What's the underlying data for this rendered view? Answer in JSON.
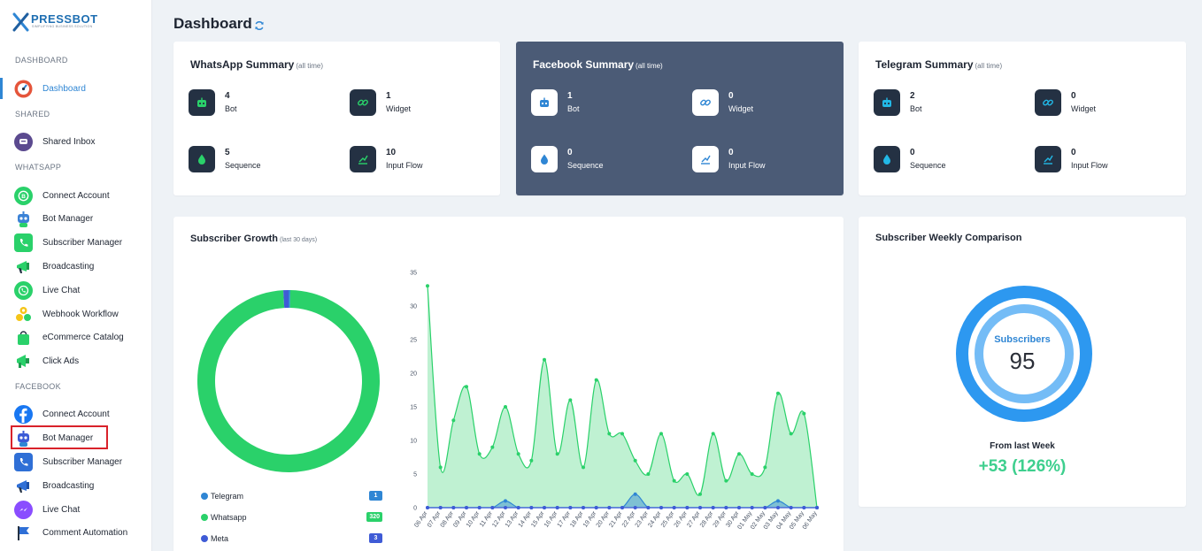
{
  "brand": {
    "name": "PRESSBOT",
    "tagline": "SIMPLIFYING BUSINESS SOLUTION"
  },
  "sidebar": {
    "sections": [
      {
        "label": "DASHBOARD",
        "items": [
          {
            "label": "Dashboard",
            "icon": "dashboard-gauge-icon",
            "active": true
          }
        ]
      },
      {
        "label": "SHARED",
        "items": [
          {
            "label": "Shared Inbox",
            "icon": "shared-inbox-icon"
          }
        ]
      },
      {
        "label": "WHATSAPP",
        "items": [
          {
            "label": "Connect Account",
            "icon": "whatsapp-business-icon"
          },
          {
            "label": "Bot Manager",
            "icon": "robot-icon"
          },
          {
            "label": "Subscriber Manager",
            "icon": "whatsapp-contacts-icon"
          },
          {
            "label": "Broadcasting",
            "icon": "megaphone-icon"
          },
          {
            "label": "Live Chat",
            "icon": "whatsapp-icon"
          },
          {
            "label": "Webhook Workflow",
            "icon": "webhook-icon"
          },
          {
            "label": "eCommerce Catalog",
            "icon": "shopping-bag-icon"
          },
          {
            "label": "Click Ads",
            "icon": "ads-megaphone-icon"
          }
        ]
      },
      {
        "label": "FACEBOOK",
        "items": [
          {
            "label": "Connect Account",
            "icon": "facebook-icon"
          },
          {
            "label": "Bot Manager",
            "icon": "robot-icon"
          },
          {
            "label": "Subscriber Manager",
            "icon": "contacts-phone-icon"
          },
          {
            "label": "Broadcasting",
            "icon": "megaphone-icon"
          },
          {
            "label": "Live Chat",
            "icon": "messenger-icon"
          },
          {
            "label": "Comment Automation",
            "icon": "flag-icon"
          }
        ]
      }
    ]
  },
  "header": {
    "title": "Dashboard",
    "refresh_icon": "refresh-icon"
  },
  "summaries": [
    {
      "title": "WhatsApp Summary",
      "subtitle": "(all time)",
      "stats": [
        {
          "label": "Bot",
          "value": "4",
          "icon": "robot-icon"
        },
        {
          "label": "Widget",
          "value": "1",
          "icon": "link-icon"
        },
        {
          "label": "Sequence",
          "value": "5",
          "icon": "droplet-icon"
        },
        {
          "label": "Input Flow",
          "value": "10",
          "icon": "input-flow-icon"
        }
      ]
    },
    {
      "title": "Facebook Summary",
      "subtitle": "(all time)",
      "stats": [
        {
          "label": "Bot",
          "value": "1",
          "icon": "robot-icon"
        },
        {
          "label": "Widget",
          "value": "0",
          "icon": "link-icon"
        },
        {
          "label": "Sequence",
          "value": "0",
          "icon": "droplet-icon"
        },
        {
          "label": "Input Flow",
          "value": "0",
          "icon": "input-flow-icon"
        }
      ]
    },
    {
      "title": "Telegram Summary",
      "subtitle": "(all time)",
      "stats": [
        {
          "label": "Bot",
          "value": "2",
          "icon": "robot-icon"
        },
        {
          "label": "Widget",
          "value": "0",
          "icon": "link-icon"
        },
        {
          "label": "Sequence",
          "value": "0",
          "icon": "droplet-icon"
        },
        {
          "label": "Input Flow",
          "value": "0",
          "icon": "input-flow-icon"
        }
      ]
    }
  ],
  "colors": {
    "whatsapp": "#2ad16a",
    "telegram": "#2f86d4",
    "meta": "#3f5bd6",
    "accent": "#2f86d4",
    "dark_card": "#4b5b76",
    "delta": "#3ecf8e"
  },
  "growth": {
    "title": "Subscriber Growth",
    "subtitle": "(last 30 days)"
  },
  "chart_data": [
    {
      "type": "pie",
      "variant": "doughnut",
      "labels": [
        "Telegram",
        "Whatsapp",
        "Meta"
      ],
      "values": [
        1,
        320,
        3
      ],
      "badges": [
        "1",
        "320",
        "3"
      ],
      "colors": [
        "#2f86d4",
        "#2ad16a",
        "#3f5bd6"
      ],
      "legend": "bottom"
    },
    {
      "type": "area",
      "categories": [
        "06 Apr",
        "07 Apr",
        "08 Apr",
        "09 Apr",
        "10 Apr",
        "11 Apr",
        "12 Apr",
        "13 Apr",
        "14 Apr",
        "15 Apr",
        "16 Apr",
        "17 Apr",
        "18 Apr",
        "19 Apr",
        "20 Apr",
        "21 Apr",
        "22 Apr",
        "23 Apr",
        "24 Apr",
        "25 Apr",
        "26 Apr",
        "27 Apr",
        "28 Apr",
        "29 Apr",
        "30 Apr",
        "01 May",
        "02 May",
        "03 May",
        "04 May",
        "05 May",
        "06 May"
      ],
      "ylim": [
        0,
        35
      ],
      "yticks": [
        0,
        5,
        10,
        15,
        20,
        25,
        30,
        35
      ],
      "series": [
        {
          "name": "Whatsapp",
          "color": "#2ad16a",
          "values": [
            33,
            6,
            13,
            18,
            8,
            9,
            15,
            8,
            7,
            22,
            8,
            16,
            6,
            19,
            11,
            11,
            7,
            5,
            11,
            4,
            5,
            2,
            11,
            4,
            8,
            5,
            6,
            17,
            11,
            14,
            0
          ]
        },
        {
          "name": "Telegram",
          "color": "#2f86d4",
          "values": [
            0,
            0,
            0,
            0,
            0,
            0,
            1,
            0,
            0,
            0,
            0,
            0,
            0,
            0,
            0,
            0,
            2,
            0,
            0,
            0,
            0,
            0,
            0,
            0,
            0,
            0,
            0,
            1,
            0,
            0,
            0
          ]
        },
        {
          "name": "Meta",
          "color": "#3f5bd6",
          "values": [
            0,
            0,
            0,
            0,
            0,
            0,
            0,
            0,
            0,
            0,
            0,
            0,
            0,
            0,
            0,
            0,
            0,
            0,
            0,
            0,
            0,
            0,
            0,
            0,
            0,
            0,
            0,
            0,
            0,
            0,
            0
          ]
        }
      ],
      "grid": false
    }
  ],
  "weekly": {
    "title": "Subscriber Weekly Comparison",
    "label": "Subscribers",
    "value": "95",
    "from_label": "From last Week",
    "delta": "+53 (126%)"
  }
}
